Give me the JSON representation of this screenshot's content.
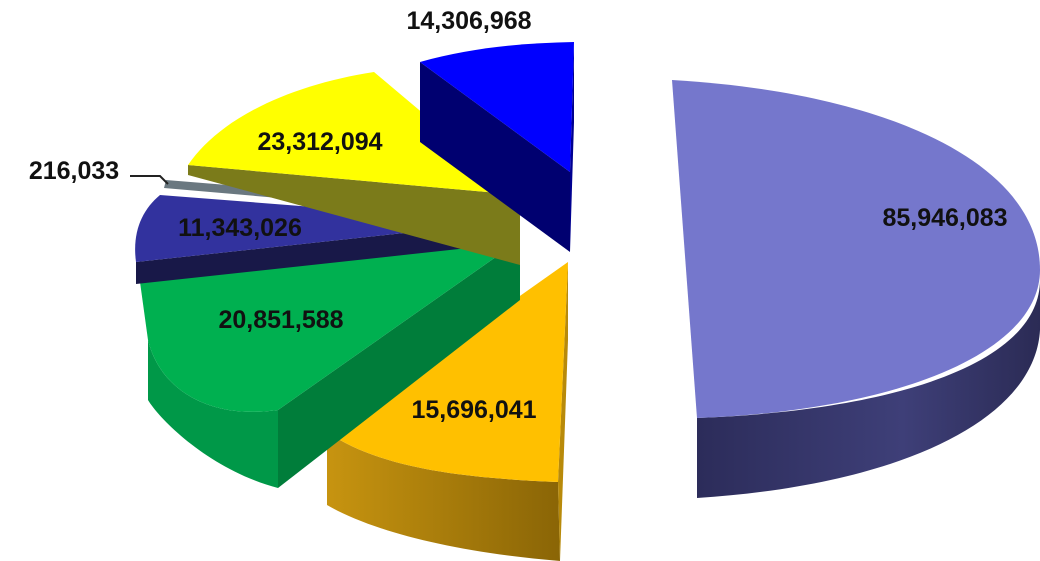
{
  "chart_data": {
    "type": "pie",
    "style": "3d-exploded",
    "title": "",
    "slices": [
      {
        "label": "85,946,083",
        "value": 85946083,
        "color": "#7577cc"
      },
      {
        "label": "15,696,041",
        "value": 15696041,
        "color": "#ffc000"
      },
      {
        "label": "20,851,588",
        "value": 20851588,
        "color": "#00b050"
      },
      {
        "label": "11,343,026",
        "value": 11343026,
        "color": "#32329e"
      },
      {
        "label": "216,033",
        "value": 216033,
        "color": "#6a7880"
      },
      {
        "label": "23,312,094",
        "value": 23312094,
        "color": "#ffff00"
      },
      {
        "label": "14,306,968",
        "value": 14306968,
        "color": "#0000ff"
      }
    ]
  }
}
